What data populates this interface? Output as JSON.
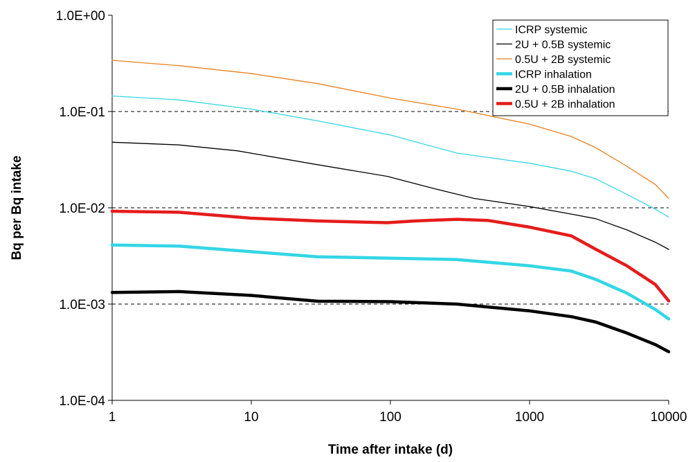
{
  "chart_data": {
    "type": "line",
    "xlabel": "Time after intake (d)",
    "ylabel": "Bq per Bq intake",
    "x_scale": "log",
    "y_scale": "log",
    "xlim": [
      1,
      10000
    ],
    "ylim": [
      0.0001,
      1
    ],
    "x_ticks": [
      1,
      10,
      100,
      1000,
      10000
    ],
    "x_tick_labels": [
      "1",
      "10",
      "100",
      "1000",
      "10000"
    ],
    "y_ticks": [
      0.0001,
      0.001,
      0.01,
      0.1,
      1
    ],
    "y_tick_labels": [
      "1.0E-04",
      "1.0E-03",
      "1.0E-02",
      "1.0E-01",
      "1.0E+00"
    ],
    "gridlines": {
      "y_major": true,
      "style": "dashed"
    },
    "legend_position": "top-right",
    "series": [
      {
        "name": "ICRP systemic",
        "color": "#33d6e6",
        "width": 1.3,
        "points": [
          [
            1,
            0.145
          ],
          [
            3,
            0.132
          ],
          [
            10,
            0.106
          ],
          [
            30,
            0.08
          ],
          [
            100,
            0.057
          ],
          [
            300,
            0.037
          ],
          [
            1000,
            0.029
          ],
          [
            2000,
            0.024
          ],
          [
            3000,
            0.02
          ],
          [
            5000,
            0.0138
          ],
          [
            8000,
            0.0097
          ],
          [
            10000,
            0.008
          ]
        ]
      },
      {
        "name": "2U + 0.5B systemic",
        "color": "#000000",
        "width": 1.3,
        "points": [
          [
            1,
            0.048
          ],
          [
            3,
            0.045
          ],
          [
            8,
            0.039
          ],
          [
            30,
            0.028
          ],
          [
            95,
            0.0212
          ],
          [
            200,
            0.016
          ],
          [
            400,
            0.0125
          ],
          [
            1000,
            0.0103
          ],
          [
            2000,
            0.0086
          ],
          [
            3000,
            0.0077
          ],
          [
            5000,
            0.0059
          ],
          [
            8000,
            0.0044
          ],
          [
            10000,
            0.0037
          ]
        ]
      },
      {
        "name": "0.5U + 2B systemic",
        "color": "#e8801e",
        "width": 1.3,
        "points": [
          [
            1,
            0.34
          ],
          [
            3,
            0.3
          ],
          [
            10,
            0.248
          ],
          [
            30,
            0.195
          ],
          [
            100,
            0.138
          ],
          [
            300,
            0.106
          ],
          [
            1000,
            0.074
          ],
          [
            2000,
            0.055
          ],
          [
            3000,
            0.042
          ],
          [
            5000,
            0.027
          ],
          [
            8000,
            0.0175
          ],
          [
            10000,
            0.0125
          ]
        ]
      },
      {
        "name": "ICRP inhalation",
        "color": "#33d6e6",
        "width": 4.5,
        "points": [
          [
            1,
            0.0041
          ],
          [
            3,
            0.004
          ],
          [
            10,
            0.0035
          ],
          [
            30,
            0.0031
          ],
          [
            100,
            0.003
          ],
          [
            300,
            0.0029
          ],
          [
            1000,
            0.0025
          ],
          [
            2000,
            0.0022
          ],
          [
            3000,
            0.0018
          ],
          [
            5000,
            0.0013
          ],
          [
            8000,
            0.00088
          ],
          [
            10000,
            0.0007
          ]
        ]
      },
      {
        "name": "2U + 0.5B inhalation",
        "color": "#000000",
        "width": 4.5,
        "points": [
          [
            1,
            0.00132
          ],
          [
            3,
            0.00135
          ],
          [
            10,
            0.00123
          ],
          [
            30,
            0.00107
          ],
          [
            100,
            0.00106
          ],
          [
            300,
            0.001
          ],
          [
            1000,
            0.00085
          ],
          [
            2000,
            0.00074
          ],
          [
            3000,
            0.00065
          ],
          [
            5000,
            0.0005
          ],
          [
            8000,
            0.00038
          ],
          [
            10000,
            0.00032
          ]
        ]
      },
      {
        "name": "0.5U + 2B inhalation",
        "color": "#e51c1c",
        "width": 4.5,
        "points": [
          [
            1,
            0.0092
          ],
          [
            3,
            0.009
          ],
          [
            10,
            0.0078
          ],
          [
            30,
            0.0073
          ],
          [
            95,
            0.007
          ],
          [
            150,
            0.0073
          ],
          [
            300,
            0.0076
          ],
          [
            500,
            0.0074
          ],
          [
            1000,
            0.0063
          ],
          [
            2000,
            0.0051
          ],
          [
            3000,
            0.0037
          ],
          [
            5000,
            0.0025
          ],
          [
            8000,
            0.0016
          ],
          [
            10000,
            0.00108
          ]
        ]
      }
    ]
  }
}
